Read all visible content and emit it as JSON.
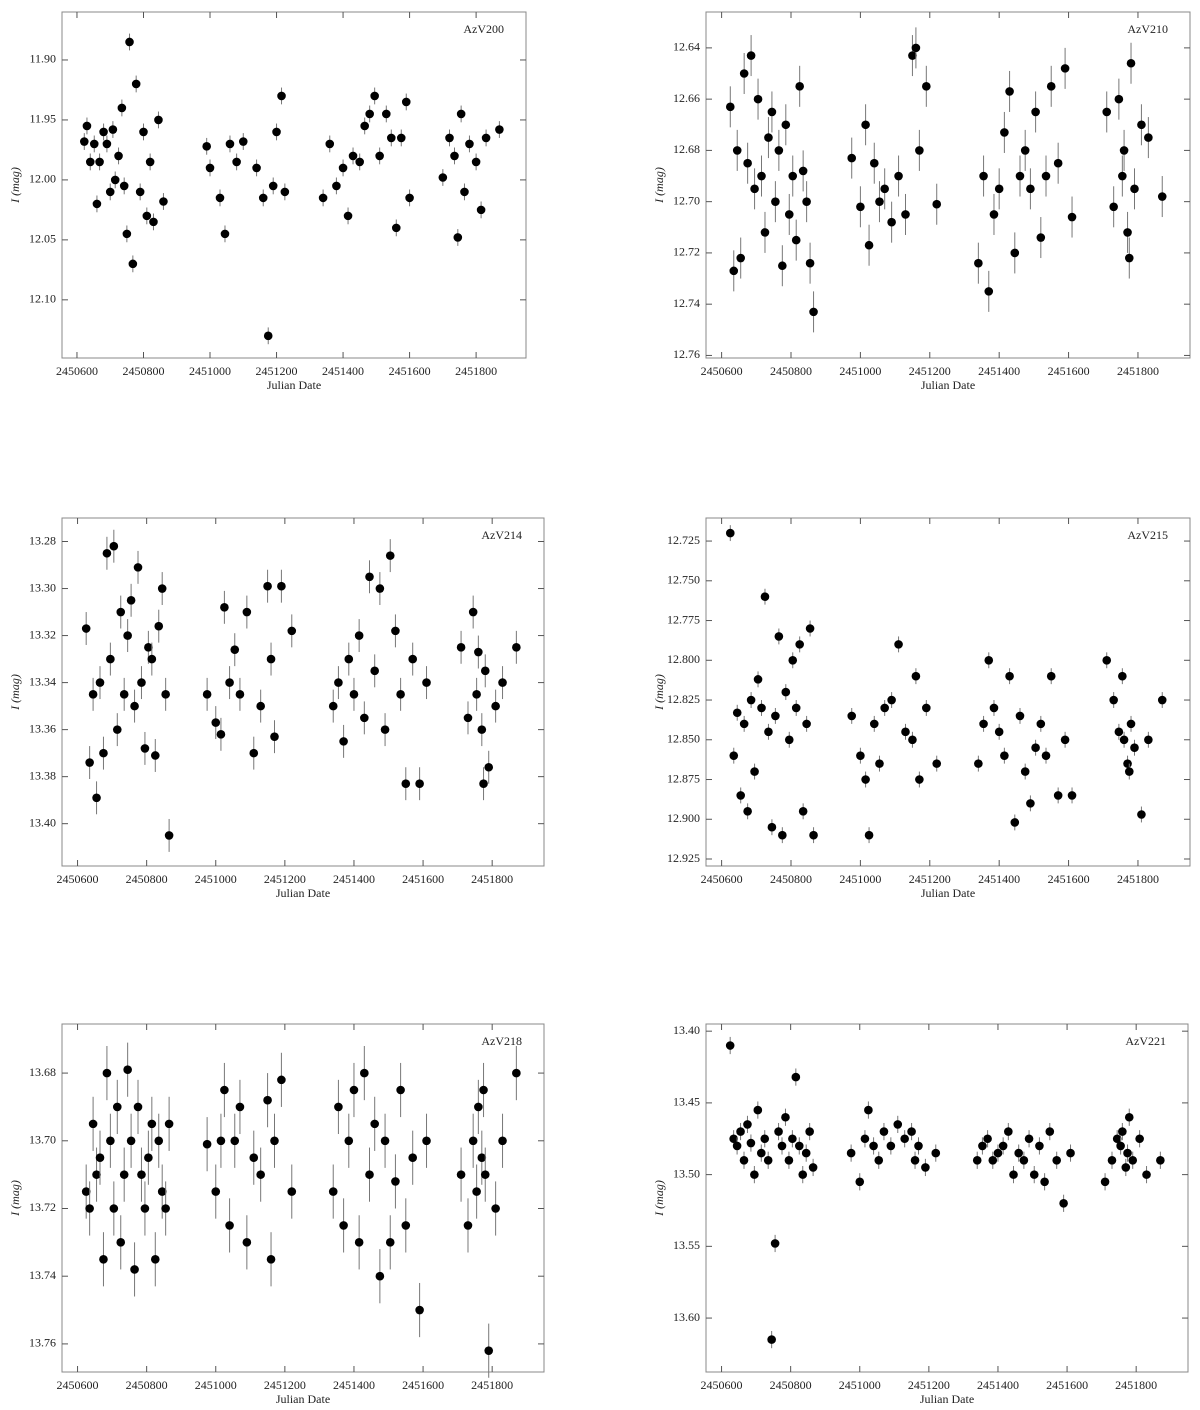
{
  "chart_data": [
    {
      "type": "scatter",
      "label": "AzV200",
      "xlabel": "Julian Date",
      "ylabel": "I (mag)",
      "y_inverted": true,
      "color": "#000000",
      "error_color": "#777777",
      "error": 0.007,
      "xlim": [
        2450555,
        2451950
      ],
      "xticks": [
        2450600,
        2450800,
        2451000,
        2451200,
        2451400,
        2451600,
        2451800
      ],
      "ylim": [
        11.86,
        12.1485
      ],
      "yticks": [
        {
          "value": 11.9,
          "label": "11.90"
        },
        11.95,
        {
          "value": 12,
          "label": "12.00"
        },
        12.05,
        {
          "value": 12.1,
          "label": "12.10"
        }
      ],
      "x": [
        2450622,
        2450630,
        2450640,
        2450652,
        2450660,
        2450668,
        2450680,
        2450690,
        2450700,
        2450708,
        2450715,
        2450725,
        2450735,
        2450742,
        2450750,
        2450758,
        2450768,
        2450778,
        2450790,
        2450800,
        2450810,
        2450820,
        2450830,
        2450845,
        2450860,
        2450990,
        2451000,
        2451030,
        2451045,
        2451060,
        2451080,
        2451100,
        2451140,
        2451160,
        2451175,
        2451190,
        2451200,
        2451215,
        2451225,
        2451340,
        2451360,
        2451380,
        2451400,
        2451415,
        2451430,
        2451450,
        2451465,
        2451480,
        2451495,
        2451510,
        2451530,
        2451545,
        2451560,
        2451575,
        2451590,
        2451600,
        2451700,
        2451720,
        2451735,
        2451745,
        2451755,
        2451765,
        2451780,
        2451800,
        2451815,
        2451830,
        2451870
      ],
      "values": [
        11.968,
        11.955,
        11.985,
        11.97,
        12.02,
        11.985,
        11.96,
        11.97,
        12.01,
        11.958,
        12.0,
        11.98,
        11.94,
        12.005,
        12.045,
        11.885,
        12.07,
        11.92,
        12.01,
        11.96,
        12.03,
        11.985,
        12.035,
        11.95,
        12.018,
        11.972,
        11.99,
        12.015,
        12.045,
        11.97,
        11.985,
        11.968,
        11.99,
        12.015,
        12.13,
        12.005,
        11.96,
        11.93,
        12.01,
        12.015,
        11.97,
        12.005,
        11.99,
        12.03,
        11.98,
        11.985,
        11.955,
        11.945,
        11.93,
        11.98,
        11.945,
        11.965,
        12.04,
        11.965,
        11.935,
        12.015,
        11.998,
        11.965,
        11.98,
        12.048,
        11.945,
        12.01,
        11.97,
        11.985,
        12.025,
        11.965,
        11.958
      ]
    },
    {
      "type": "scatter",
      "label": "AzV210",
      "xlabel": "Julian Date",
      "ylabel": "I (mag)",
      "y_inverted": true,
      "color": "#000000",
      "error_color": "#777777",
      "error": 0.008,
      "xlim": [
        2450555,
        2451950
      ],
      "xticks": [
        2450600,
        2450800,
        2451000,
        2451200,
        2451400,
        2451600,
        2451800
      ],
      "ylim": [
        12.626,
        12.761
      ],
      "yticks": [
        12.64,
        12.66,
        12.68,
        {
          "value": 12.7,
          "label": "12.70"
        },
        12.72,
        12.74,
        12.76
      ],
      "x": [
        2450625,
        2450635,
        2450645,
        2450655,
        2450665,
        2450675,
        2450685,
        2450695,
        2450705,
        2450715,
        2450725,
        2450735,
        2450745,
        2450755,
        2450765,
        2450775,
        2450785,
        2450795,
        2450805,
        2450815,
        2450825,
        2450835,
        2450845,
        2450855,
        2450865,
        2450975,
        2451000,
        2451015,
        2451025,
        2451040,
        2451055,
        2451070,
        2451090,
        2451110,
        2451130,
        2451150,
        2451160,
        2451170,
        2451190,
        2451220,
        2451340,
        2451355,
        2451370,
        2451385,
        2451400,
        2451415,
        2451430,
        2451445,
        2451460,
        2451475,
        2451490,
        2451505,
        2451520,
        2451535,
        2451550,
        2451570,
        2451590,
        2451610,
        2451710,
        2451730,
        2451745,
        2451755,
        2451760,
        2451770,
        2451775,
        2451780,
        2451790,
        2451810,
        2451830,
        2451870
      ],
      "values": [
        12.663,
        12.727,
        12.68,
        12.722,
        12.65,
        12.685,
        12.643,
        12.695,
        12.66,
        12.69,
        12.712,
        12.675,
        12.665,
        12.7,
        12.68,
        12.725,
        12.67,
        12.705,
        12.69,
        12.715,
        12.655,
        12.688,
        12.7,
        12.724,
        12.743,
        12.683,
        12.702,
        12.67,
        12.717,
        12.685,
        12.7,
        12.695,
        12.708,
        12.69,
        12.705,
        12.643,
        12.64,
        12.68,
        12.655,
        12.701,
        12.724,
        12.69,
        12.735,
        12.705,
        12.695,
        12.673,
        12.657,
        12.72,
        12.69,
        12.68,
        12.695,
        12.665,
        12.714,
        12.69,
        12.655,
        12.685,
        12.648,
        12.706,
        12.665,
        12.702,
        12.66,
        12.69,
        12.68,
        12.712,
        12.722,
        12.646,
        12.695,
        12.67,
        12.675,
        12.698
      ]
    },
    {
      "type": "scatter",
      "label": "AzV214",
      "xlabel": "Julian Date",
      "ylabel": "I (mag)",
      "y_inverted": true,
      "color": "#000000",
      "error_color": "#777777",
      "error": 0.007,
      "xlim": [
        2450555,
        2451950
      ],
      "xticks": [
        2450600,
        2450800,
        2451000,
        2451200,
        2451400,
        2451600,
        2451800
      ],
      "ylim": [
        13.27,
        13.418
      ],
      "yticks": [
        13.28,
        {
          "value": 13.3,
          "label": "13.30"
        },
        13.32,
        13.34,
        13.36,
        13.38,
        {
          "value": 13.4,
          "label": "13.40"
        }
      ],
      "x": [
        2450625,
        2450635,
        2450645,
        2450655,
        2450665,
        2450675,
        2450685,
        2450695,
        2450705,
        2450715,
        2450725,
        2450735,
        2450745,
        2450755,
        2450765,
        2450775,
        2450785,
        2450795,
        2450805,
        2450815,
        2450825,
        2450835,
        2450845,
        2450855,
        2450865,
        2450975,
        2451000,
        2451015,
        2451025,
        2451040,
        2451055,
        2451070,
        2451090,
        2451110,
        2451130,
        2451150,
        2451160,
        2451170,
        2451190,
        2451220,
        2451340,
        2451355,
        2451370,
        2451385,
        2451400,
        2451415,
        2451430,
        2451445,
        2451460,
        2451475,
        2451490,
        2451505,
        2451520,
        2451535,
        2451550,
        2451570,
        2451590,
        2451610,
        2451710,
        2451730,
        2451745,
        2451755,
        2451760,
        2451770,
        2451775,
        2451780,
        2451790,
        2451810,
        2451830,
        2451870
      ],
      "values": [
        13.317,
        13.374,
        13.345,
        13.389,
        13.34,
        13.37,
        13.285,
        13.33,
        13.282,
        13.36,
        13.31,
        13.345,
        13.32,
        13.305,
        13.35,
        13.291,
        13.34,
        13.368,
        13.325,
        13.33,
        13.371,
        13.316,
        13.3,
        13.345,
        13.405,
        13.345,
        13.357,
        13.362,
        13.308,
        13.34,
        13.326,
        13.345,
        13.31,
        13.37,
        13.35,
        13.299,
        13.33,
        13.363,
        13.299,
        13.318,
        13.35,
        13.34,
        13.365,
        13.33,
        13.345,
        13.32,
        13.355,
        13.295,
        13.335,
        13.3,
        13.36,
        13.286,
        13.318,
        13.345,
        13.383,
        13.33,
        13.383,
        13.34,
        13.325,
        13.355,
        13.31,
        13.345,
        13.327,
        13.36,
        13.383,
        13.335,
        13.376,
        13.35,
        13.34,
        13.325
      ]
    },
    {
      "type": "scatter",
      "label": "AzV215",
      "xlabel": "Julian Date",
      "ylabel": "I (mag)",
      "y_inverted": true,
      "color": "#000000",
      "error_color": "#777777",
      "error": 0.005,
      "xlim": [
        2450555,
        2451950
      ],
      "xticks": [
        2450600,
        2450800,
        2451000,
        2451200,
        2451400,
        2451600,
        2451800
      ],
      "ylim": [
        12.7105,
        12.9294
      ],
      "yticks": [
        12.725,
        {
          "value": 12.75,
          "label": "12.750"
        },
        12.775,
        {
          "value": 12.8,
          "label": "12.800"
        },
        12.825,
        {
          "value": 12.85,
          "label": "12.850"
        },
        12.875,
        {
          "value": 12.9,
          "label": "12.900"
        },
        12.925
      ],
      "x": [
        2450625,
        2450635,
        2450645,
        2450655,
        2450665,
        2450675,
        2450685,
        2450695,
        2450705,
        2450715,
        2450725,
        2450735,
        2450745,
        2450755,
        2450765,
        2450775,
        2450785,
        2450795,
        2450805,
        2450815,
        2450825,
        2450835,
        2450845,
        2450855,
        2450865,
        2450975,
        2451000,
        2451015,
        2451025,
        2451040,
        2451055,
        2451070,
        2451090,
        2451110,
        2451130,
        2451150,
        2451160,
        2451170,
        2451190,
        2451220,
        2451340,
        2451355,
        2451370,
        2451385,
        2451400,
        2451415,
        2451430,
        2451445,
        2451460,
        2451475,
        2451490,
        2451505,
        2451520,
        2451535,
        2451550,
        2451570,
        2451590,
        2451610,
        2451710,
        2451730,
        2451745,
        2451755,
        2451760,
        2451770,
        2451775,
        2451780,
        2451790,
        2451810,
        2451830,
        2451870
      ],
      "values": [
        12.72,
        12.86,
        12.833,
        12.885,
        12.84,
        12.895,
        12.825,
        12.87,
        12.812,
        12.83,
        12.76,
        12.845,
        12.905,
        12.835,
        12.785,
        12.91,
        12.82,
        12.85,
        12.8,
        12.83,
        12.79,
        12.895,
        12.84,
        12.78,
        12.91,
        12.835,
        12.86,
        12.875,
        12.91,
        12.84,
        12.865,
        12.83,
        12.825,
        12.79,
        12.845,
        12.85,
        12.81,
        12.875,
        12.83,
        12.865,
        12.865,
        12.84,
        12.8,
        12.83,
        12.845,
        12.86,
        12.81,
        12.902,
        12.835,
        12.87,
        12.89,
        12.855,
        12.84,
        12.86,
        12.81,
        12.885,
        12.85,
        12.885,
        12.8,
        12.825,
        12.845,
        12.81,
        12.85,
        12.865,
        12.87,
        12.84,
        12.855,
        12.897,
        12.85,
        12.825
      ]
    },
    {
      "type": "scatter",
      "label": "AzV218",
      "xlabel": "Julian Date",
      "ylabel": "I (mag)",
      "y_inverted": true,
      "color": "#000000",
      "error_color": "#777777",
      "error": 0.008,
      "xlim": [
        2450555,
        2451950
      ],
      "xticks": [
        2450600,
        2450800,
        2451000,
        2451200,
        2451400,
        2451600,
        2451800
      ],
      "ylim": [
        13.6655,
        13.7683
      ],
      "yticks": [
        13.68,
        {
          "value": 13.7,
          "label": "13.70"
        },
        13.72,
        13.74,
        13.76
      ],
      "x": [
        2450625,
        2450635,
        2450645,
        2450655,
        2450665,
        2450675,
        2450685,
        2450695,
        2450705,
        2450715,
        2450725,
        2450735,
        2450745,
        2450755,
        2450765,
        2450775,
        2450785,
        2450795,
        2450805,
        2450815,
        2450825,
        2450835,
        2450845,
        2450855,
        2450865,
        2450975,
        2451000,
        2451015,
        2451025,
        2451040,
        2451055,
        2451070,
        2451090,
        2451110,
        2451130,
        2451150,
        2451160,
        2451170,
        2451190,
        2451220,
        2451340,
        2451355,
        2451370,
        2451385,
        2451400,
        2451415,
        2451430,
        2451445,
        2451460,
        2451475,
        2451490,
        2451505,
        2451520,
        2451535,
        2451550,
        2451570,
        2451590,
        2451610,
        2451710,
        2451730,
        2451745,
        2451755,
        2451760,
        2451770,
        2451775,
        2451780,
        2451790,
        2451810,
        2451830,
        2451870
      ],
      "values": [
        13.715,
        13.72,
        13.695,
        13.71,
        13.705,
        13.735,
        13.68,
        13.7,
        13.72,
        13.69,
        13.73,
        13.71,
        13.679,
        13.7,
        13.738,
        13.69,
        13.71,
        13.72,
        13.705,
        13.695,
        13.735,
        13.7,
        13.715,
        13.72,
        13.695,
        13.701,
        13.715,
        13.7,
        13.685,
        13.725,
        13.7,
        13.69,
        13.73,
        13.705,
        13.71,
        13.688,
        13.735,
        13.7,
        13.682,
        13.715,
        13.715,
        13.69,
        13.725,
        13.7,
        13.685,
        13.73,
        13.68,
        13.71,
        13.695,
        13.74,
        13.7,
        13.73,
        13.712,
        13.685,
        13.725,
        13.705,
        13.75,
        13.7,
        13.71,
        13.725,
        13.7,
        13.715,
        13.69,
        13.705,
        13.685,
        13.71,
        13.762,
        13.72,
        13.7,
        13.68
      ]
    },
    {
      "type": "scatter",
      "label": "AzV221",
      "xlabel": "Julian Date",
      "ylabel": "I (mag)",
      "y_inverted": true,
      "color": "#000000",
      "error_color": "#777777",
      "error": 0.006,
      "xlim": [
        2450555,
        2451950
      ],
      "xticks": [
        2450600,
        2450800,
        2451000,
        2451200,
        2451400,
        2451600,
        2451800
      ],
      "ylim": [
        13.395,
        13.6376
      ],
      "yticks": [
        {
          "value": 13.4,
          "label": "13.40"
        },
        13.45,
        {
          "value": 13.5,
          "label": "13.50"
        },
        13.55,
        {
          "value": 13.6,
          "label": "13.60"
        }
      ],
      "x": [
        2450625,
        2450635,
        2450645,
        2450655,
        2450665,
        2450675,
        2450685,
        2450695,
        2450705,
        2450715,
        2450725,
        2450735,
        2450745,
        2450755,
        2450765,
        2450775,
        2450785,
        2450795,
        2450805,
        2450815,
        2450825,
        2450835,
        2450845,
        2450855,
        2450865,
        2450975,
        2451000,
        2451015,
        2451025,
        2451040,
        2451055,
        2451070,
        2451090,
        2451110,
        2451130,
        2451150,
        2451160,
        2451170,
        2451190,
        2451220,
        2451340,
        2451355,
        2451370,
        2451385,
        2451400,
        2451415,
        2451430,
        2451445,
        2451460,
        2451475,
        2451490,
        2451505,
        2451520,
        2451535,
        2451550,
        2451570,
        2451590,
        2451610,
        2451710,
        2451730,
        2451745,
        2451755,
        2451760,
        2451770,
        2451775,
        2451780,
        2451790,
        2451810,
        2451830,
        2451870
      ],
      "values": [
        13.41,
        13.475,
        13.48,
        13.47,
        13.49,
        13.465,
        13.478,
        13.5,
        13.455,
        13.485,
        13.475,
        13.49,
        13.615,
        13.548,
        13.47,
        13.48,
        13.46,
        13.49,
        13.475,
        13.432,
        13.48,
        13.5,
        13.485,
        13.47,
        13.495,
        13.485,
        13.505,
        13.475,
        13.455,
        13.48,
        13.49,
        13.47,
        13.48,
        13.465,
        13.475,
        13.47,
        13.49,
        13.48,
        13.495,
        13.485,
        13.49,
        13.48,
        13.475,
        13.49,
        13.485,
        13.48,
        13.47,
        13.5,
        13.485,
        13.49,
        13.475,
        13.5,
        13.48,
        13.505,
        13.47,
        13.49,
        13.52,
        13.485,
        13.505,
        13.49,
        13.475,
        13.48,
        13.47,
        13.495,
        13.485,
        13.46,
        13.49,
        13.475,
        13.5,
        13.49
      ]
    }
  ]
}
